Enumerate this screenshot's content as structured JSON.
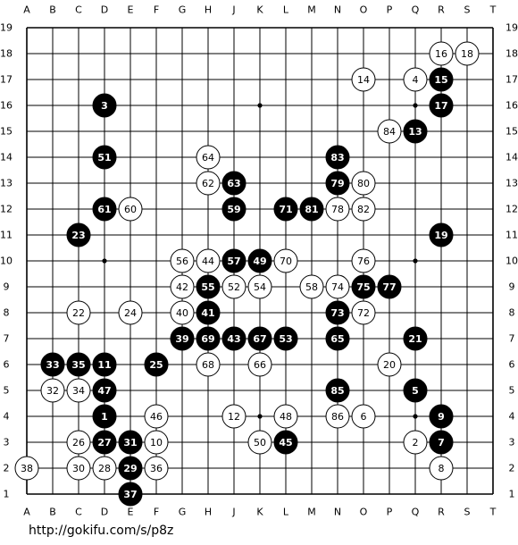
{
  "board": {
    "size": 19,
    "columns": [
      "A",
      "B",
      "C",
      "D",
      "E",
      "F",
      "G",
      "H",
      "J",
      "K",
      "L",
      "M",
      "N",
      "O",
      "P",
      "Q",
      "R",
      "S",
      "T"
    ],
    "hoshi": [
      "D4",
      "K4",
      "Q4",
      "D10",
      "K10",
      "Q10",
      "D16",
      "K16",
      "Q16"
    ]
  },
  "stones": [
    {
      "n": "1",
      "c": "black",
      "p": "D4"
    },
    {
      "n": "2",
      "c": "white",
      "p": "Q3"
    },
    {
      "n": "3",
      "c": "black",
      "p": "D16"
    },
    {
      "n": "4",
      "c": "white",
      "p": "Q17"
    },
    {
      "n": "5",
      "c": "black",
      "p": "Q5"
    },
    {
      "n": "6",
      "c": "white",
      "p": "O4"
    },
    {
      "n": "7",
      "c": "black",
      "p": "R3"
    },
    {
      "n": "8",
      "c": "white",
      "p": "R2"
    },
    {
      "n": "9",
      "c": "black",
      "p": "R4"
    },
    {
      "n": "10",
      "c": "white",
      "p": "F3"
    },
    {
      "n": "11",
      "c": "black",
      "p": "D6"
    },
    {
      "n": "12",
      "c": "white",
      "p": "J4"
    },
    {
      "n": "13",
      "c": "black",
      "p": "Q15"
    },
    {
      "n": "14",
      "c": "white",
      "p": "O17"
    },
    {
      "n": "15",
      "c": "black",
      "p": "R17"
    },
    {
      "n": "16",
      "c": "white",
      "p": "R18"
    },
    {
      "n": "17",
      "c": "black",
      "p": "R16"
    },
    {
      "n": "18",
      "c": "white",
      "p": "S18"
    },
    {
      "n": "19",
      "c": "black",
      "p": "R11"
    },
    {
      "n": "20",
      "c": "white",
      "p": "P6"
    },
    {
      "n": "21",
      "c": "black",
      "p": "Q7"
    },
    {
      "n": "22",
      "c": "white",
      "p": "C8"
    },
    {
      "n": "23",
      "c": "black",
      "p": "C11"
    },
    {
      "n": "24",
      "c": "white",
      "p": "E8"
    },
    {
      "n": "25",
      "c": "black",
      "p": "F6"
    },
    {
      "n": "26",
      "c": "white",
      "p": "C3"
    },
    {
      "n": "27",
      "c": "black",
      "p": "D3"
    },
    {
      "n": "28",
      "c": "white",
      "p": "D2"
    },
    {
      "n": "29",
      "c": "black",
      "p": "E2"
    },
    {
      "n": "30",
      "c": "white",
      "p": "C2"
    },
    {
      "n": "31",
      "c": "black",
      "p": "E3"
    },
    {
      "n": "32",
      "c": "white",
      "p": "B5"
    },
    {
      "n": "33",
      "c": "black",
      "p": "B6"
    },
    {
      "n": "34",
      "c": "white",
      "p": "C5"
    },
    {
      "n": "35",
      "c": "black",
      "p": "C6"
    },
    {
      "n": "36",
      "c": "white",
      "p": "F2"
    },
    {
      "n": "37",
      "c": "black",
      "p": "E1"
    },
    {
      "n": "38",
      "c": "white",
      "p": "A2"
    },
    {
      "n": "39",
      "c": "black",
      "p": "G7"
    },
    {
      "n": "40",
      "c": "white",
      "p": "G8"
    },
    {
      "n": "41",
      "c": "black",
      "p": "H8"
    },
    {
      "n": "42",
      "c": "white",
      "p": "G9"
    },
    {
      "n": "43",
      "c": "black",
      "p": "J7"
    },
    {
      "n": "44",
      "c": "white",
      "p": "H10"
    },
    {
      "n": "45",
      "c": "black",
      "p": "L3"
    },
    {
      "n": "46",
      "c": "white",
      "p": "F4"
    },
    {
      "n": "47",
      "c": "black",
      "p": "D5"
    },
    {
      "n": "48",
      "c": "white",
      "p": "L4"
    },
    {
      "n": "49",
      "c": "black",
      "p": "K10"
    },
    {
      "n": "50",
      "c": "white",
      "p": "K3"
    },
    {
      "n": "51",
      "c": "black",
      "p": "D14"
    },
    {
      "n": "52",
      "c": "white",
      "p": "J9"
    },
    {
      "n": "53",
      "c": "black",
      "p": "L7"
    },
    {
      "n": "54",
      "c": "white",
      "p": "K9"
    },
    {
      "n": "55",
      "c": "black",
      "p": "H9"
    },
    {
      "n": "56",
      "c": "white",
      "p": "G10"
    },
    {
      "n": "57",
      "c": "black",
      "p": "J10"
    },
    {
      "n": "58",
      "c": "white",
      "p": "M9"
    },
    {
      "n": "59",
      "c": "black",
      "p": "J12"
    },
    {
      "n": "60",
      "c": "white",
      "p": "E12"
    },
    {
      "n": "61",
      "c": "black",
      "p": "D12"
    },
    {
      "n": "62",
      "c": "white",
      "p": "H13"
    },
    {
      "n": "63",
      "c": "black",
      "p": "J13"
    },
    {
      "n": "64",
      "c": "white",
      "p": "H14"
    },
    {
      "n": "65",
      "c": "black",
      "p": "N7"
    },
    {
      "n": "66",
      "c": "white",
      "p": "K6"
    },
    {
      "n": "67",
      "c": "black",
      "p": "K7"
    },
    {
      "n": "68",
      "c": "white",
      "p": "H6"
    },
    {
      "n": "69",
      "c": "black",
      "p": "H7"
    },
    {
      "n": "70",
      "c": "white",
      "p": "L10"
    },
    {
      "n": "71",
      "c": "black",
      "p": "L12"
    },
    {
      "n": "72",
      "c": "white",
      "p": "O8"
    },
    {
      "n": "73",
      "c": "black",
      "p": "N8"
    },
    {
      "n": "74",
      "c": "white",
      "p": "N9"
    },
    {
      "n": "75",
      "c": "black",
      "p": "O9"
    },
    {
      "n": "76",
      "c": "white",
      "p": "O10"
    },
    {
      "n": "77",
      "c": "black",
      "p": "P9"
    },
    {
      "n": "78",
      "c": "white",
      "p": "N12"
    },
    {
      "n": "79",
      "c": "black",
      "p": "N13"
    },
    {
      "n": "80",
      "c": "white",
      "p": "O13"
    },
    {
      "n": "81",
      "c": "black",
      "p": "M12"
    },
    {
      "n": "82",
      "c": "white",
      "p": "O12"
    },
    {
      "n": "83",
      "c": "black",
      "p": "N14"
    },
    {
      "n": "84",
      "c": "white",
      "p": "P15"
    },
    {
      "n": "85",
      "c": "black",
      "p": "N5"
    },
    {
      "n": "86",
      "c": "white",
      "p": "N4"
    }
  ],
  "footer": {
    "url": "http://gokifu.com/s/p8z"
  },
  "colors": {
    "line": "#000000",
    "black_stone": "#000000",
    "white_stone": "#ffffff"
  }
}
